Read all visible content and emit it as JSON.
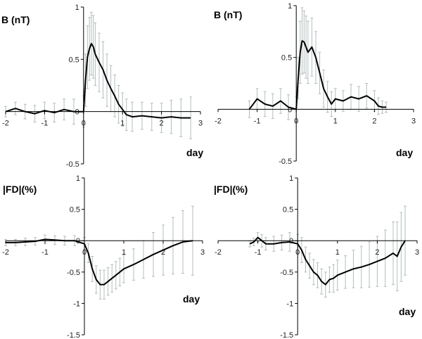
{
  "chart_data": [
    {
      "type": "line",
      "ylabel": "B (nT)",
      "xlabel": "day",
      "xlim": [
        -2,
        3
      ],
      "ylim": [
        -0.5,
        1
      ],
      "xticks": [
        -2,
        -1,
        0,
        1,
        2,
        3
      ],
      "yticks": [
        -0.5,
        0,
        0.5,
        1
      ],
      "xtick_labels": [
        "-2",
        "-1",
        "0",
        "1",
        "2",
        "3"
      ],
      "ytick_labels": [
        "-0.5",
        "0",
        "0.5",
        "1"
      ],
      "series": [
        {
          "x": [
            -2.0,
            -1.75,
            -1.5,
            -1.25,
            -1.0,
            -0.75,
            -0.5,
            -0.25,
            0.0,
            0.05,
            0.1,
            0.15,
            0.2,
            0.25,
            0.3,
            0.4,
            0.5,
            0.6,
            0.7,
            0.8,
            0.9,
            1.0,
            1.1,
            1.25,
            1.5,
            1.75,
            2.0,
            2.25,
            2.5,
            2.75
          ],
          "y": [
            0.0,
            0.03,
            0.0,
            -0.02,
            0.01,
            -0.01,
            0.02,
            0.0,
            0.0,
            0.3,
            0.52,
            0.6,
            0.65,
            0.62,
            0.55,
            0.47,
            0.4,
            0.3,
            0.22,
            0.15,
            0.07,
            0.02,
            -0.03,
            -0.05,
            -0.04,
            -0.05,
            -0.06,
            -0.05,
            -0.06,
            -0.06
          ],
          "err": [
            0.05,
            0.06,
            0.07,
            0.08,
            0.08,
            0.09,
            0.1,
            0.12,
            0.15,
            0.25,
            0.3,
            0.3,
            0.3,
            0.3,
            0.3,
            0.28,
            0.27,
            0.25,
            0.22,
            0.2,
            0.18,
            0.16,
            0.15,
            0.14,
            0.13,
            0.13,
            0.14,
            0.16,
            0.18,
            0.2
          ]
        }
      ]
    },
    {
      "type": "line",
      "ylabel": "B (nT)",
      "xlabel": "day",
      "xlim": [
        -2,
        3
      ],
      "ylim": [
        -0.5,
        1
      ],
      "xticks": [
        -2,
        -1,
        0,
        1,
        2,
        3
      ],
      "yticks": [
        -0.5,
        0,
        0.5,
        1
      ],
      "xtick_labels": [
        "-2",
        "-1",
        "0",
        "1",
        "2",
        "3"
      ],
      "ytick_labels": [
        "-0.5",
        "0",
        "0.5",
        "1"
      ],
      "series": [
        {
          "x": [
            -1.2,
            -1.0,
            -0.8,
            -0.6,
            -0.4,
            -0.2,
            0.0,
            0.05,
            0.1,
            0.15,
            0.2,
            0.25,
            0.3,
            0.4,
            0.5,
            0.6,
            0.7,
            0.8,
            0.9,
            1.0,
            1.2,
            1.4,
            1.6,
            1.8,
            2.0,
            2.1,
            2.2,
            2.3
          ],
          "y": [
            0.0,
            0.1,
            0.05,
            0.03,
            0.08,
            0.02,
            0.0,
            0.3,
            0.55,
            0.66,
            0.65,
            0.6,
            0.55,
            0.6,
            0.5,
            0.35,
            0.2,
            0.12,
            0.05,
            0.1,
            0.08,
            0.12,
            0.1,
            0.13,
            0.08,
            0.03,
            0.02,
            0.02
          ],
          "err": [
            0.08,
            0.1,
            0.12,
            0.12,
            0.12,
            0.12,
            0.12,
            0.2,
            0.3,
            0.32,
            0.3,
            0.3,
            0.3,
            0.28,
            0.25,
            0.2,
            0.18,
            0.15,
            0.12,
            0.1,
            0.1,
            0.12,
            0.12,
            0.12,
            0.1,
            0.08,
            0.06,
            0.05
          ]
        }
      ]
    },
    {
      "type": "line",
      "ylabel": "|FD|(%)",
      "xlabel": "day",
      "xlim": [
        -2,
        3
      ],
      "ylim": [
        -1.5,
        1
      ],
      "xticks": [
        -2,
        -1,
        0,
        1,
        2,
        3
      ],
      "yticks": [
        -1.5,
        -1,
        -0.5,
        0,
        0.5,
        1
      ],
      "xtick_labels": [
        "-2",
        "-1",
        "0",
        "1",
        "2",
        "3"
      ],
      "ytick_labels": [
        "-1.5",
        "-1",
        "-0.5",
        "0",
        "0.5",
        "1"
      ],
      "series": [
        {
          "x": [
            -2.0,
            -1.75,
            -1.5,
            -1.25,
            -1.0,
            -0.75,
            -0.5,
            -0.25,
            0.0,
            0.1,
            0.2,
            0.3,
            0.4,
            0.5,
            0.6,
            0.7,
            0.8,
            0.9,
            1.0,
            1.25,
            1.5,
            1.75,
            2.0,
            2.25,
            2.5,
            2.75
          ],
          "y": [
            -0.03,
            -0.03,
            -0.02,
            -0.01,
            0.02,
            0.01,
            0.0,
            0.0,
            -0.05,
            -0.2,
            -0.45,
            -0.62,
            -0.7,
            -0.7,
            -0.65,
            -0.6,
            -0.55,
            -0.5,
            -0.45,
            -0.38,
            -0.3,
            -0.22,
            -0.15,
            -0.08,
            -0.02,
            0.0
          ],
          "err": [
            0.05,
            0.05,
            0.06,
            0.06,
            0.07,
            0.07,
            0.07,
            0.08,
            0.1,
            0.15,
            0.2,
            0.22,
            0.23,
            0.23,
            0.22,
            0.22,
            0.22,
            0.22,
            0.22,
            0.25,
            0.3,
            0.35,
            0.4,
            0.45,
            0.5,
            0.55
          ]
        }
      ]
    },
    {
      "type": "line",
      "ylabel": "|FD|(%)",
      "xlabel": "day",
      "xlim": [
        -2,
        3
      ],
      "ylim": [
        -1.5,
        1
      ],
      "xticks": [
        -2,
        -1,
        0,
        1,
        2,
        3
      ],
      "yticks": [
        -1.5,
        -1,
        -0.5,
        0,
        0.5,
        1
      ],
      "xtick_labels": [
        "-2",
        "-1",
        "0",
        "1",
        "2",
        "3"
      ],
      "ytick_labels": [
        "-1.5",
        "-1",
        "-0.5",
        "0",
        "0.5",
        "1"
      ],
      "series": [
        {
          "x": [
            -1.2,
            -1.1,
            -1.0,
            -0.9,
            -0.8,
            -0.6,
            -0.4,
            -0.2,
            0.0,
            0.1,
            0.2,
            0.3,
            0.4,
            0.5,
            0.6,
            0.7,
            0.8,
            0.9,
            1.0,
            1.2,
            1.4,
            1.6,
            1.8,
            2.0,
            2.2,
            2.4,
            2.5,
            2.6,
            2.7
          ],
          "y": [
            -0.05,
            -0.02,
            0.05,
            0.0,
            -0.05,
            -0.05,
            -0.03,
            -0.02,
            -0.05,
            -0.15,
            -0.3,
            -0.4,
            -0.5,
            -0.55,
            -0.65,
            -0.7,
            -0.62,
            -0.6,
            -0.55,
            -0.5,
            -0.45,
            -0.42,
            -0.38,
            -0.33,
            -0.28,
            -0.2,
            -0.25,
            -0.1,
            0.0
          ],
          "err": [
            0.05,
            0.06,
            0.08,
            0.1,
            0.1,
            0.12,
            0.12,
            0.15,
            0.15,
            0.2,
            0.2,
            0.2,
            0.2,
            0.2,
            0.2,
            0.2,
            0.2,
            0.22,
            0.24,
            0.26,
            0.3,
            0.33,
            0.36,
            0.4,
            0.45,
            0.5,
            0.55,
            0.55,
            0.55
          ]
        }
      ]
    }
  ]
}
